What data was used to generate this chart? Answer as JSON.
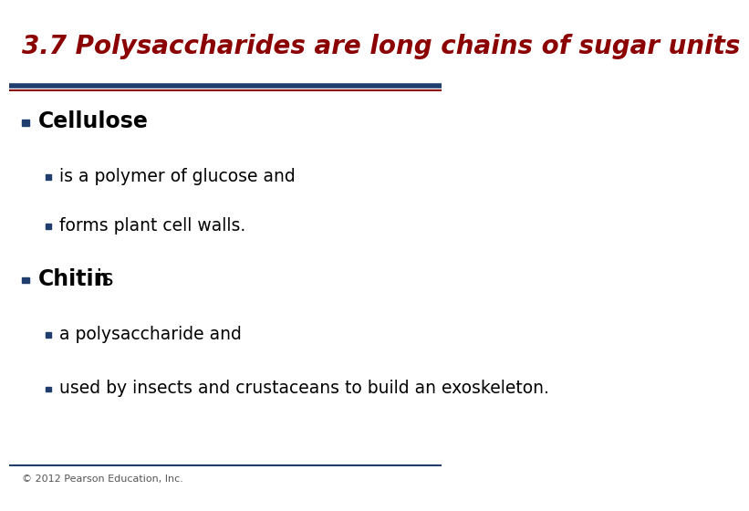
{
  "title": "3.7 Polysaccharides are long chains of sugar units",
  "title_color": "#8B0000",
  "title_fontsize": 20,
  "separator_color_top": "#1F3E6E",
  "separator_color_bottom": "#8B0000",
  "background_color": "#FFFFFF",
  "bullet_color": "#1F3E6E",
  "bullet1_label": "Cellulose",
  "bullet1_color": "#000000",
  "sub_bullet1a": "is a polymer of glucose and",
  "sub_bullet1b": "forms plant cell walls.",
  "bullet2_label_bold": "Chitin",
  "bullet2_label_rest": " is",
  "bullet2_color": "#000000",
  "sub_bullet2a": "a polysaccharide and",
  "sub_bullet2b": "used by insects and crustaceans to build an exoskeleton.",
  "footer": "© 2012 Pearson Education, Inc.",
  "footer_fontsize": 8,
  "footer_color": "#555555"
}
